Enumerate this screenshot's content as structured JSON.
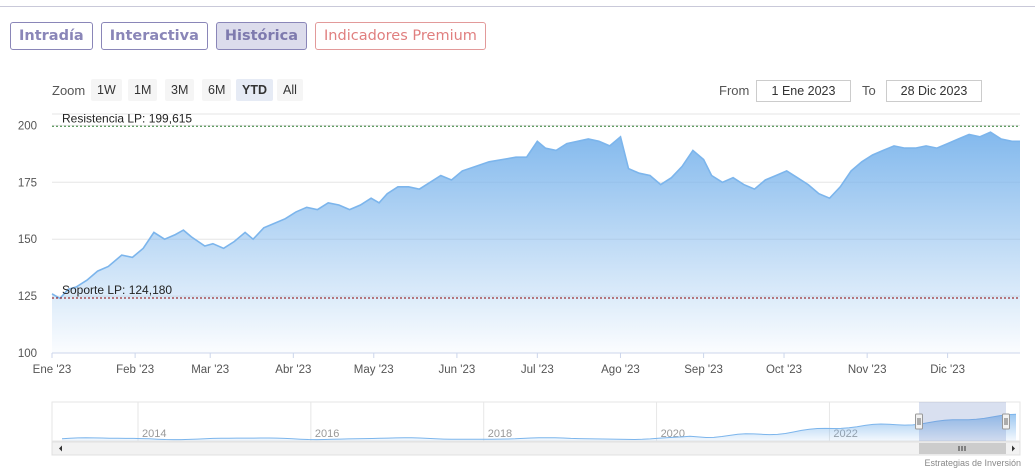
{
  "tabs": [
    {
      "label": "Intradía"
    },
    {
      "label": "Interactiva"
    },
    {
      "label": "Histórica"
    },
    {
      "label": "Indicadores Premium"
    }
  ],
  "zoom": {
    "label": "Zoom",
    "buttons": [
      "1W",
      "1M",
      "3M",
      "6M",
      "YTD",
      "All"
    ],
    "selected": "YTD"
  },
  "range": {
    "from_label": "From",
    "from_value": "1 Ene 2023",
    "to_label": "To",
    "to_value": "28 Dic 2023"
  },
  "credit": "Estrategias de Inversión",
  "colors": {
    "series": "#7cb5ec",
    "resistance": "#2e7d32",
    "support": "#8b0000",
    "tab": "#8a86b8",
    "premium": "#e07f7f"
  },
  "chart_data": {
    "type": "area",
    "title": "",
    "xlabel": "",
    "ylabel": "",
    "ylim": [
      100,
      205
    ],
    "yticks": [
      100,
      125,
      150,
      175,
      200
    ],
    "xlim": [
      "2023-01-01",
      "2023-12-28"
    ],
    "xticks": [
      {
        "date": "2023-01-01",
        "label": "Ene '23"
      },
      {
        "date": "2023-02-01",
        "label": "Feb '23"
      },
      {
        "date": "2023-03-01",
        "label": "Mar '23"
      },
      {
        "date": "2023-04-01",
        "label": "Abr '23"
      },
      {
        "date": "2023-05-01",
        "label": "May '23"
      },
      {
        "date": "2023-06-01",
        "label": "Jun '23"
      },
      {
        "date": "2023-07-01",
        "label": "Jul '23"
      },
      {
        "date": "2023-08-01",
        "label": "Ago '23"
      },
      {
        "date": "2023-09-01",
        "label": "Sep '23"
      },
      {
        "date": "2023-10-01",
        "label": "Oct '23"
      },
      {
        "date": "2023-11-01",
        "label": "Nov '23"
      },
      {
        "date": "2023-12-01",
        "label": "Dic '23"
      }
    ],
    "grid": true,
    "series": [
      {
        "x": [
          "2023-01-01",
          "2023-01-04",
          "2023-01-07",
          "2023-01-10",
          "2023-01-14",
          "2023-01-18",
          "2023-01-22",
          "2023-01-27",
          "2023-01-31",
          "2023-02-04",
          "2023-02-08",
          "2023-02-12",
          "2023-02-16",
          "2023-02-19",
          "2023-02-22",
          "2023-02-27",
          "2023-03-02",
          "2023-03-06",
          "2023-03-10",
          "2023-03-14",
          "2023-03-17",
          "2023-03-21",
          "2023-03-25",
          "2023-03-29",
          "2023-04-02",
          "2023-04-06",
          "2023-04-10",
          "2023-04-14",
          "2023-04-18",
          "2023-04-22",
          "2023-04-26",
          "2023-04-30",
          "2023-05-03",
          "2023-05-06",
          "2023-05-10",
          "2023-05-14",
          "2023-05-18",
          "2023-05-22",
          "2023-05-26",
          "2023-05-30",
          "2023-06-03",
          "2023-06-08",
          "2023-06-13",
          "2023-06-18",
          "2023-06-23",
          "2023-06-27",
          "2023-07-01",
          "2023-07-04",
          "2023-07-08",
          "2023-07-12",
          "2023-07-16",
          "2023-07-20",
          "2023-07-24",
          "2023-07-28",
          "2023-08-01",
          "2023-08-04",
          "2023-08-08",
          "2023-08-12",
          "2023-08-16",
          "2023-08-20",
          "2023-08-24",
          "2023-08-28",
          "2023-09-01",
          "2023-09-04",
          "2023-09-08",
          "2023-09-12",
          "2023-09-16",
          "2023-09-20",
          "2023-09-24",
          "2023-09-28",
          "2023-10-02",
          "2023-10-06",
          "2023-10-10",
          "2023-10-14",
          "2023-10-18",
          "2023-10-22",
          "2023-10-26",
          "2023-10-30",
          "2023-11-03",
          "2023-11-07",
          "2023-11-11",
          "2023-11-15",
          "2023-11-19",
          "2023-11-23",
          "2023-11-27",
          "2023-12-01",
          "2023-12-05",
          "2023-12-09",
          "2023-12-13",
          "2023-12-17",
          "2023-12-21",
          "2023-12-25",
          "2023-12-28"
        ],
        "values": [
          126,
          124,
          128,
          129,
          132,
          136,
          138,
          143,
          142,
          146,
          153,
          150,
          152,
          154,
          151,
          147,
          148,
          146,
          149,
          153,
          150,
          155,
          157,
          159,
          162,
          164,
          163,
          166,
          165,
          163,
          165,
          168,
          166,
          170,
          173,
          173,
          172,
          175,
          178,
          176,
          180,
          182,
          184,
          185,
          186,
          186,
          193,
          190,
          189,
          192,
          193,
          194,
          193,
          191,
          195,
          181,
          179,
          178,
          174,
          177,
          182,
          189,
          185,
          178,
          175,
          177,
          174,
          172,
          176,
          178,
          180,
          177,
          174,
          170,
          168,
          173,
          180,
          184,
          187,
          189,
          191,
          190,
          190,
          191,
          190,
          192,
          194,
          196,
          195,
          197,
          194,
          193,
          193
        ]
      }
    ],
    "annotations": [
      {
        "label": "Resistencia LP: 199,615",
        "value": 199.615
      },
      {
        "label": "Soporte LP: 124,180",
        "value": 124.18
      }
    ],
    "navigator": {
      "xticks": [
        "2014",
        "2016",
        "2018",
        "2020",
        "2022"
      ]
    }
  }
}
